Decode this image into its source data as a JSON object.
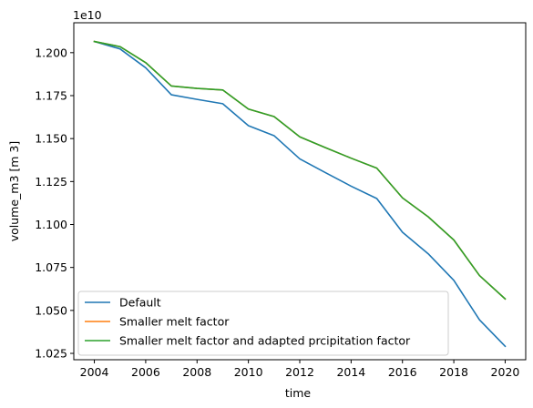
{
  "chart_data": {
    "type": "line",
    "xlabel": "time",
    "ylabel": "volume_m3 [m 3]",
    "offset_text": "1e10",
    "x": [
      2004,
      2005,
      2006,
      2007,
      2008,
      2009,
      2010,
      2011,
      2012,
      2013,
      2014,
      2015,
      2016,
      2017,
      2018,
      2019,
      2020
    ],
    "xlim": [
      2003.2,
      2020.8
    ],
    "ylim": [
      1.0213,
      1.2174
    ],
    "xticks": [
      2004,
      2006,
      2008,
      2010,
      2012,
      2014,
      2016,
      2018,
      2020
    ],
    "xtick_labels": [
      "2004",
      "2006",
      "2008",
      "2010",
      "2012",
      "2014",
      "2016",
      "2018",
      "2020"
    ],
    "yticks": [
      1.025,
      1.05,
      1.075,
      1.1,
      1.125,
      1.15,
      1.175,
      1.2
    ],
    "ytick_labels": [
      "1.025",
      "1.050",
      "1.075",
      "1.100",
      "1.125",
      "1.150",
      "1.175",
      "1.200"
    ],
    "grid": false,
    "legend_position": "lower-left",
    "series": [
      {
        "name": "Default",
        "color": "#1f77b4",
        "values": [
          1.2065,
          1.2022,
          1.1912,
          1.1755,
          1.1728,
          1.1703,
          1.1575,
          1.1517,
          1.1382,
          1.1302,
          1.1223,
          1.1151,
          1.0955,
          1.083,
          1.0675,
          1.0445,
          1.0291
        ]
      },
      {
        "name": "Smaller melt factor",
        "color": "#ff7f0e",
        "values": [
          1.2065,
          1.2035,
          1.1942,
          1.1806,
          1.1792,
          1.1783,
          1.1672,
          1.1628,
          1.151,
          1.1447,
          1.1386,
          1.1328,
          1.1155,
          1.1045,
          1.091,
          1.0703,
          1.0567
        ]
      },
      {
        "name": "Smaller melt factor and adapted prcipitation factor",
        "color": "#2ca02c",
        "values": [
          1.2065,
          1.2035,
          1.1942,
          1.1806,
          1.1792,
          1.1783,
          1.1672,
          1.1628,
          1.151,
          1.1447,
          1.1386,
          1.1328,
          1.1155,
          1.1045,
          1.091,
          1.0703,
          1.0567
        ]
      }
    ]
  }
}
